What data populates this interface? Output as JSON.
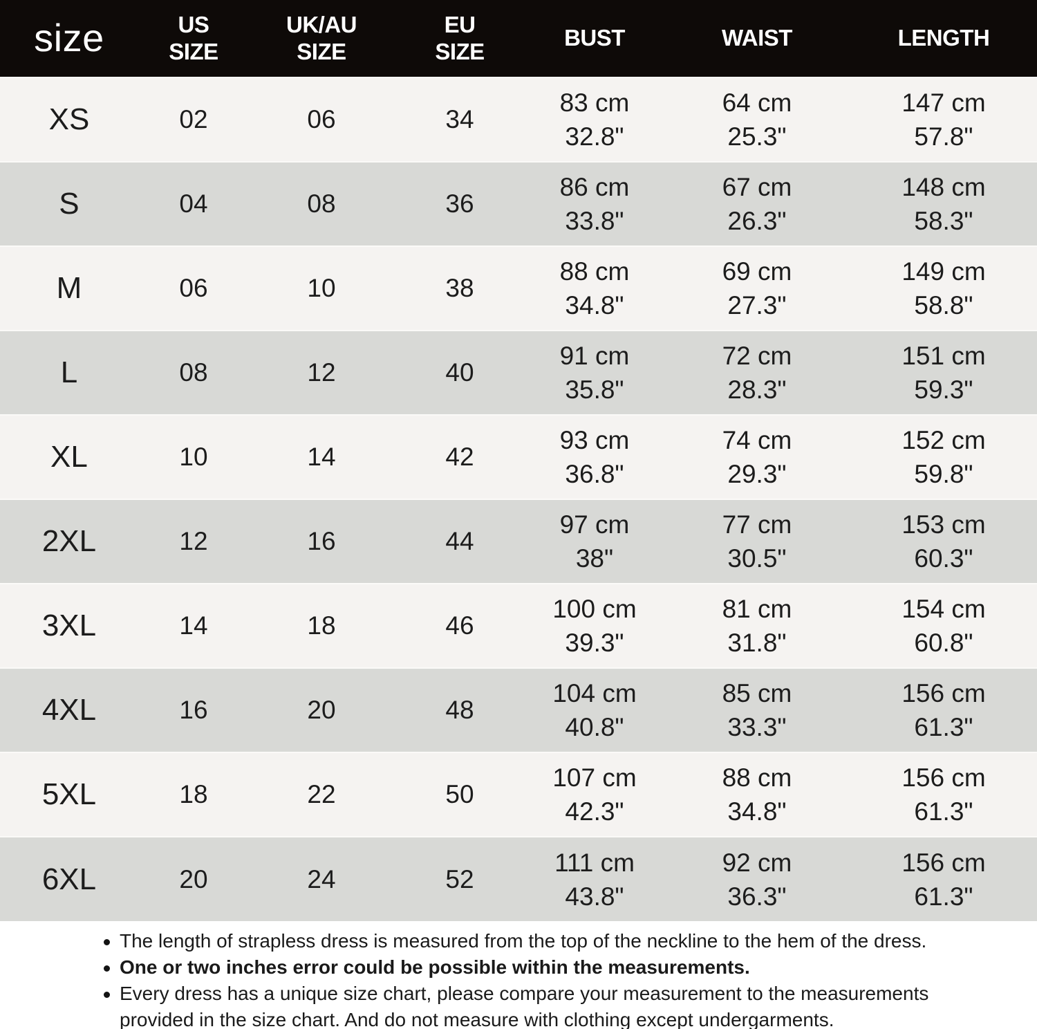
{
  "colors": {
    "header_bg": "#0e0a08",
    "header_text": "#ffffff",
    "row_light": "#f5f3f1",
    "row_gray": "#d8d9d6",
    "body_text": "#1a1a1a"
  },
  "chart_data": {
    "type": "table",
    "title": "size",
    "columns": [
      {
        "id": "size",
        "label": "size"
      },
      {
        "id": "us",
        "label": "US\nSIZE"
      },
      {
        "id": "ukau",
        "label": "UK/AU\nSIZE"
      },
      {
        "id": "eu",
        "label": "EU\nSIZE"
      },
      {
        "id": "bust",
        "label": "BUST"
      },
      {
        "id": "waist",
        "label": "WAIST"
      },
      {
        "id": "length",
        "label": "LENGTH"
      }
    ],
    "rows": [
      {
        "size": "XS",
        "us": "02",
        "ukau": "06",
        "eu": "34",
        "bust": [
          "83 cm",
          "32.8\""
        ],
        "waist": [
          "64 cm",
          "25.3\""
        ],
        "length": [
          "147 cm",
          "57.8\""
        ]
      },
      {
        "size": "S",
        "us": "04",
        "ukau": "08",
        "eu": "36",
        "bust": [
          "86 cm",
          "33.8\""
        ],
        "waist": [
          "67 cm",
          "26.3\""
        ],
        "length": [
          "148 cm",
          "58.3\""
        ]
      },
      {
        "size": "M",
        "us": "06",
        "ukau": "10",
        "eu": "38",
        "bust": [
          "88 cm",
          "34.8\""
        ],
        "waist": [
          "69 cm",
          "27.3\""
        ],
        "length": [
          "149 cm",
          "58.8\""
        ]
      },
      {
        "size": "L",
        "us": "08",
        "ukau": "12",
        "eu": "40",
        "bust": [
          "91 cm",
          "35.8\""
        ],
        "waist": [
          "72 cm",
          "28.3\""
        ],
        "length": [
          "151 cm",
          "59.3\""
        ]
      },
      {
        "size": "XL",
        "us": "10",
        "ukau": "14",
        "eu": "42",
        "bust": [
          "93 cm",
          "36.8\""
        ],
        "waist": [
          "74 cm",
          "29.3\""
        ],
        "length": [
          "152 cm",
          "59.8\""
        ]
      },
      {
        "size": "2XL",
        "us": "12",
        "ukau": "16",
        "eu": "44",
        "bust": [
          "97 cm",
          "38\""
        ],
        "waist": [
          "77 cm",
          "30.5\""
        ],
        "length": [
          "153 cm",
          "60.3\""
        ]
      },
      {
        "size": "3XL",
        "us": "14",
        "ukau": "18",
        "eu": "46",
        "bust": [
          "100 cm",
          "39.3\""
        ],
        "waist": [
          "81 cm",
          "31.8\""
        ],
        "length": [
          "154 cm",
          "60.8\""
        ]
      },
      {
        "size": "4XL",
        "us": "16",
        "ukau": "20",
        "eu": "48",
        "bust": [
          "104 cm",
          "40.8\""
        ],
        "waist": [
          "85 cm",
          "33.3\""
        ],
        "length": [
          "156 cm",
          "61.3\""
        ]
      },
      {
        "size": "5XL",
        "us": "18",
        "ukau": "22",
        "eu": "50",
        "bust": [
          "107 cm",
          "42.3\""
        ],
        "waist": [
          "88 cm",
          "34.8\""
        ],
        "length": [
          "156 cm",
          "61.3\""
        ]
      },
      {
        "size": "6XL",
        "us": "20",
        "ukau": "24",
        "eu": "52",
        "bust": [
          "111 cm",
          "43.8\""
        ],
        "waist": [
          "92 cm",
          "36.3\""
        ],
        "length": [
          "156 cm",
          "61.3\""
        ]
      }
    ]
  },
  "notes": [
    {
      "text": "The length of strapless dress is measured from the top of the neckline to the hem of the dress.",
      "bold": false
    },
    {
      "text": "One or two inches error could be possible within the measurements.",
      "bold": true
    },
    {
      "text": "Every dress has a unique size chart, please compare your measurement to the measurements provided in the size chart. And do not measure with clothing except undergarments.",
      "bold": false
    }
  ]
}
